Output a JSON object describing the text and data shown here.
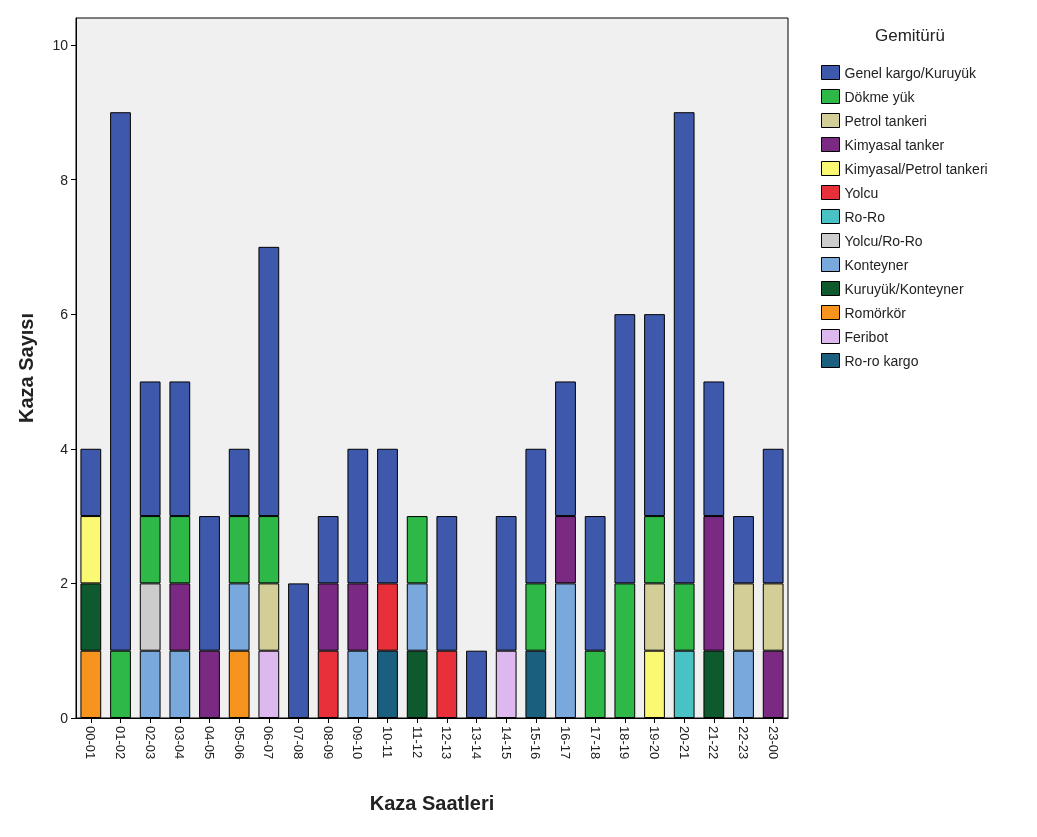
{
  "chart_data": {
    "type": "bar",
    "stacked": true,
    "xlabel": "Kaza Saatleri",
    "ylabel": "Kaza Sayısı",
    "legend_title": "Gemitürü",
    "legend": "top right",
    "grid": false,
    "categories": [
      "00-01",
      "01-02",
      "02-03",
      "03-04",
      "04-05",
      "05-06",
      "06-07",
      "07-08",
      "08-09",
      "09-10",
      "10-11",
      "11-12",
      "12-13",
      "13-14",
      "14-15",
      "15-16",
      "16-17",
      "17-18",
      "18-19",
      "19-20",
      "20-21",
      "21-22",
      "22-23",
      "23-00"
    ],
    "ylim": [
      0,
      10.4
    ],
    "yticks": [
      0,
      2,
      4,
      6,
      8,
      10
    ],
    "series": [
      {
        "name": "Ro-ro kargo",
        "color": "#1b5f7e",
        "values": [
          null,
          null,
          null,
          null,
          null,
          null,
          null,
          null,
          null,
          null,
          1,
          null,
          null,
          null,
          null,
          1,
          null,
          null,
          null,
          null,
          null,
          null,
          null,
          null
        ]
      },
      {
        "name": "Feribot",
        "color": "#dcb8ef",
        "values": [
          null,
          null,
          null,
          null,
          null,
          null,
          1,
          null,
          null,
          null,
          null,
          null,
          null,
          null,
          1,
          null,
          null,
          null,
          null,
          null,
          null,
          null,
          null,
          null
        ]
      },
      {
        "name": "Romörkör",
        "color": "#f7941d",
        "values": [
          1,
          null,
          null,
          null,
          null,
          1,
          null,
          null,
          null,
          null,
          null,
          null,
          null,
          null,
          null,
          null,
          null,
          null,
          null,
          null,
          null,
          null,
          null,
          null
        ]
      },
      {
        "name": "Kuruyük/Konteyner",
        "color": "#0e5a2e",
        "values": [
          1,
          null,
          null,
          null,
          null,
          null,
          null,
          null,
          null,
          null,
          null,
          1,
          null,
          null,
          null,
          null,
          null,
          null,
          null,
          null,
          null,
          1,
          null,
          null
        ]
      },
      {
        "name": "Konteyner",
        "color": "#79a8dc",
        "values": [
          null,
          null,
          1,
          1,
          null,
          1,
          null,
          null,
          null,
          1,
          null,
          1,
          null,
          null,
          null,
          null,
          2,
          null,
          null,
          null,
          null,
          null,
          1,
          null
        ]
      },
      {
        "name": "Yolcu/Ro-Ro",
        "color": "#cccccc",
        "values": [
          null,
          null,
          1,
          null,
          null,
          null,
          null,
          null,
          null,
          null,
          null,
          null,
          null,
          null,
          null,
          null,
          null,
          null,
          null,
          null,
          null,
          null,
          null,
          null
        ]
      },
      {
        "name": "Ro-Ro",
        "color": "#48c2c5",
        "values": [
          null,
          null,
          null,
          null,
          null,
          null,
          null,
          null,
          null,
          null,
          null,
          null,
          null,
          null,
          null,
          null,
          null,
          null,
          null,
          null,
          1,
          null,
          null,
          null
        ]
      },
      {
        "name": "Yolcu",
        "color": "#e8303a",
        "values": [
          null,
          null,
          null,
          null,
          null,
          null,
          null,
          null,
          1,
          null,
          1,
          null,
          1,
          null,
          null,
          null,
          null,
          null,
          null,
          null,
          null,
          null,
          null,
          null
        ]
      },
      {
        "name": "Kimyasal/Petrol tankeri",
        "color": "#fbf873",
        "values": [
          1,
          null,
          null,
          null,
          null,
          null,
          null,
          null,
          null,
          null,
          null,
          null,
          null,
          null,
          null,
          null,
          null,
          null,
          null,
          1,
          null,
          null,
          null,
          null
        ]
      },
      {
        "name": "Kimyasal tanker",
        "color": "#7a2a83",
        "values": [
          null,
          null,
          null,
          1,
          1,
          null,
          null,
          null,
          1,
          1,
          null,
          null,
          null,
          null,
          null,
          null,
          1,
          null,
          null,
          null,
          null,
          2,
          null,
          1
        ]
      },
      {
        "name": "Petrol tankeri",
        "color": "#d3ce97",
        "values": [
          null,
          null,
          null,
          null,
          null,
          null,
          1,
          null,
          null,
          null,
          null,
          null,
          null,
          null,
          null,
          null,
          null,
          null,
          null,
          1,
          null,
          null,
          1,
          1
        ]
      },
      {
        "name": "Dökme yük",
        "color": "#2eb848",
        "values": [
          null,
          1,
          1,
          1,
          null,
          1,
          1,
          null,
          null,
          null,
          null,
          1,
          null,
          null,
          null,
          1,
          null,
          1,
          2,
          1,
          1,
          null,
          null,
          null
        ]
      },
      {
        "name": "Genel kargo/Kuruyük",
        "color": "#3e58ac",
        "values": [
          1,
          8,
          2,
          2,
          2,
          1,
          4,
          2,
          1,
          2,
          2,
          null,
          2,
          1,
          2,
          2,
          2,
          2,
          4,
          3,
          7,
          2,
          1,
          2
        ]
      }
    ]
  }
}
